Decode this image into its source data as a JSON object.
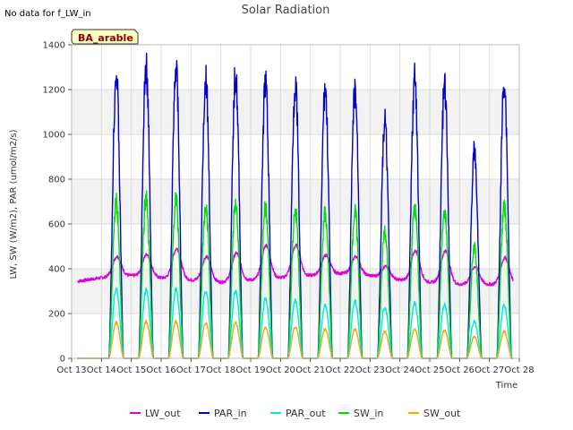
{
  "corner_note": "No data for f_LW_in",
  "badge": "BA_arable",
  "chart_data": {
    "type": "line",
    "title": "Solar Radiation",
    "xlabel": "Time",
    "ylabel": "LW, SW (W/m2), PAR (umol/m2/s)",
    "xlim": [
      13,
      28
    ],
    "ylim": [
      0,
      1400
    ],
    "x_ticks": [
      "Oct 13",
      "Oct 14",
      "Oct 15",
      "Oct 16",
      "Oct 17",
      "Oct 18",
      "Oct 19",
      "Oct 20",
      "Oct 21",
      "Oct 22",
      "Oct 23",
      "Oct 24",
      "Oct 25",
      "Oct 26",
      "Oct 27",
      "Oct 28"
    ],
    "y_ticks": [
      0,
      200,
      400,
      600,
      800,
      1000,
      1200,
      1400
    ],
    "grid": true,
    "background_bands": true,
    "legend_position": "bottom",
    "days": [
      14,
      15,
      16,
      17,
      18,
      19,
      20,
      21,
      22,
      23,
      24,
      25,
      26,
      27
    ],
    "series": [
      {
        "name": "LW_out",
        "color": "#dd00dd",
        "night_values": [
          340,
          360,
          370,
          360,
          350,
          340,
          350,
          360,
          370,
          380,
          370,
          350,
          340,
          330,
          330
        ],
        "day_peaks": [
          455,
          465,
          490,
          455,
          470,
          505,
          505,
          460,
          455,
          410,
          480,
          480,
          410,
          450
        ]
      },
      {
        "name": "PAR_in",
        "color": "#0000cc",
        "day_peaks": [
          1350,
          1390,
          1380,
          1330,
          1350,
          1310,
          1300,
          1280,
          1270,
          1115,
          1320,
          1290,
          975,
          1320
        ]
      },
      {
        "name": "PAR_out",
        "color": "#00e5ee",
        "day_peaks": [
          320,
          320,
          320,
          315,
          315,
          275,
          270,
          250,
          265,
          240,
          255,
          250,
          170,
          245
        ]
      },
      {
        "name": "SW_in",
        "color": "#00e000",
        "day_peaks": [
          740,
          760,
          755,
          720,
          740,
          715,
          705,
          695,
          695,
          600,
          720,
          705,
          525,
          720
        ]
      },
      {
        "name": "SW_out",
        "color": "#ffa500",
        "day_peaks": [
          165,
          170,
          170,
          165,
          165,
          145,
          145,
          135,
          135,
          125,
          135,
          130,
          100,
          125
        ]
      }
    ]
  }
}
